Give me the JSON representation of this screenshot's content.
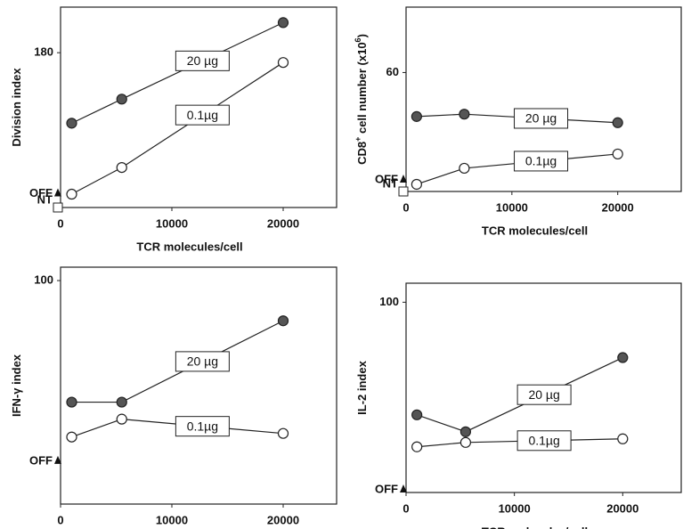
{
  "chart_data": [
    {
      "type": "line",
      "ylabel": [
        {
          "text": "Division index"
        }
      ],
      "xlabel": "TCR molecules/cell",
      "x": [
        1000,
        5500,
        20000
      ],
      "xlim": [
        0,
        24800
      ],
      "xticks": [
        0,
        10000,
        20000
      ],
      "ylim": [
        0,
        233
      ],
      "yticks": [
        180
      ],
      "markers": [
        {
          "label": "OFF",
          "value": 13,
          "shape": "triangle"
        },
        {
          "label": "NT",
          "value": 0,
          "shape": "square"
        }
      ],
      "series": [
        {
          "name": "20 µg",
          "color": "#555555",
          "filled": true,
          "values": [
            98,
            126,
            215
          ]
        },
        {
          "name": "0.1µg",
          "color": "#ffffff",
          "filled": false,
          "values": [
            15.5,
            46.5,
            168.6
          ]
        }
      ]
    },
    {
      "type": "line",
      "ylabel": [
        {
          "text": "CD8"
        },
        {
          "text": "+",
          "sup": true
        },
        {
          "text": " cell number (x10"
        },
        {
          "text": "6",
          "sup": true
        },
        {
          "text": ")"
        }
      ],
      "xlabel": "TCR molecules/cell",
      "x": [
        1000,
        5500,
        20000
      ],
      "xlim": [
        0,
        26000
      ],
      "xticks": [
        0,
        10000,
        20000
      ],
      "ylim": [
        0,
        93
      ],
      "yticks": [
        60
      ],
      "markers": [
        {
          "label": "OFF",
          "value": 4.5,
          "shape": "triangle"
        },
        {
          "label": "NT",
          "value": 0,
          "shape": "square"
        }
      ],
      "series": [
        {
          "name": "20 µg",
          "color": "#555555",
          "filled": true,
          "values": [
            37.8,
            39,
            34.7
          ]
        },
        {
          "name": "0.1µg",
          "color": "#ffffff",
          "filled": false,
          "values": [
            3.6,
            11.7,
            18.9
          ]
        }
      ]
    },
    {
      "type": "line",
      "ylabel": [
        {
          "text": "IFN-γ index"
        }
      ],
      "xlabel": "TCR molecules/cell",
      "x": [
        1000,
        5500,
        20000
      ],
      "xlim": [
        0,
        24800
      ],
      "xticks": [
        0,
        10000,
        20000
      ],
      "ylim": [
        0,
        106
      ],
      "yticks": [
        100
      ],
      "markers": [
        {
          "label": "OFF",
          "value": 18,
          "shape": "triangle"
        }
      ],
      "series": [
        {
          "name": "20 µg",
          "color": "#555555",
          "filled": true,
          "values": [
            45.6,
            45.6,
            82
          ]
        },
        {
          "name": "0.1µg",
          "color": "#ffffff",
          "filled": false,
          "values": [
            30,
            38,
            31.6
          ]
        }
      ]
    },
    {
      "type": "line",
      "ylabel": [
        {
          "text": "IL-2 index"
        }
      ],
      "xlabel": "TCR molecules/cell",
      "x": [
        1000,
        5500,
        20000
      ],
      "xlim": [
        0,
        25400
      ],
      "xticks": [
        0,
        10000,
        20000
      ],
      "ylim": [
        0,
        110
      ],
      "yticks": [
        100
      ],
      "markers": [
        {
          "label": "OFF",
          "value": 0,
          "shape": "triangle"
        }
      ],
      "series": [
        {
          "name": "20 µg",
          "color": "#555555",
          "filled": true,
          "values": [
            40.8,
            31.9,
            70.9
          ]
        },
        {
          "name": "0.1µg",
          "color": "#ffffff",
          "filled": false,
          "values": [
            24,
            26.3,
            28.2
          ]
        }
      ]
    }
  ]
}
